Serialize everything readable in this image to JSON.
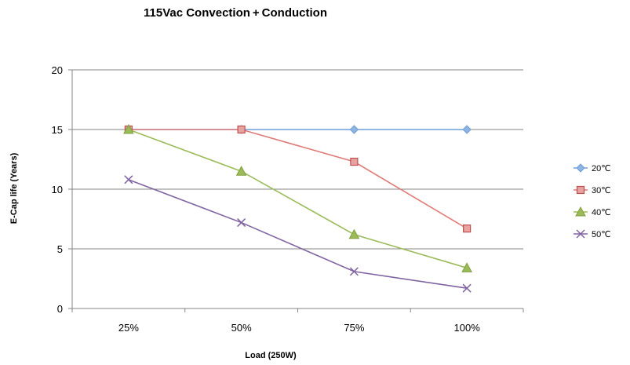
{
  "chart_data": {
    "type": "line",
    "title": "115Vac Convection + Conduction",
    "xlabel": "Load (250W)",
    "ylabel": "E-Cap life (Years)",
    "categories": [
      "25%",
      "50%",
      "75%",
      "100%"
    ],
    "ylim": [
      0,
      20
    ],
    "yticks": [
      0,
      5,
      10,
      15,
      20
    ],
    "grid": true,
    "legend_position": "right",
    "series": [
      {
        "name": "20℃",
        "values": [
          15,
          15,
          15,
          15
        ],
        "color": "#6f9fd8",
        "marker": "diamond"
      },
      {
        "name": "30℃",
        "values": [
          15,
          15,
          12.3,
          6.7
        ],
        "color": "#e07a78",
        "marker": "square"
      },
      {
        "name": "40℃",
        "values": [
          15,
          11.5,
          6.2,
          3.4
        ],
        "color": "#9bbb59",
        "marker": "triangle"
      },
      {
        "name": "50℃",
        "values": [
          10.8,
          7.2,
          3.1,
          1.7
        ],
        "color": "#8064a2",
        "marker": "x"
      }
    ]
  }
}
